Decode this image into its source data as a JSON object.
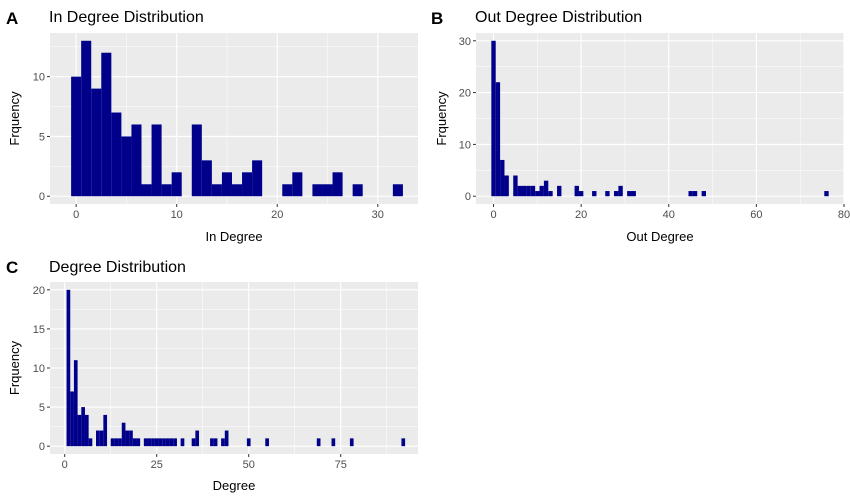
{
  "chart_data": [
    {
      "type": "bar",
      "panel": "A",
      "title": "In Degree Distribution",
      "xlabel": "In Degree",
      "ylabel": "Frquency",
      "xlim": [
        -2.6,
        34.0
      ],
      "ylim": [
        -0.65,
        13.65
      ],
      "xticks": [
        0,
        10,
        20,
        30
      ],
      "yticks": [
        0,
        5,
        10
      ],
      "binwidth": 1,
      "bar_color": "#00008B",
      "grid": true,
      "bins": [
        {
          "x": 0,
          "y": 10
        },
        {
          "x": 1,
          "y": 13
        },
        {
          "x": 2,
          "y": 9
        },
        {
          "x": 3,
          "y": 12
        },
        {
          "x": 4,
          "y": 7
        },
        {
          "x": 5,
          "y": 5
        },
        {
          "x": 6,
          "y": 6
        },
        {
          "x": 7,
          "y": 1
        },
        {
          "x": 8,
          "y": 6
        },
        {
          "x": 9,
          "y": 1
        },
        {
          "x": 10,
          "y": 2
        },
        {
          "x": 12,
          "y": 6
        },
        {
          "x": 13,
          "y": 3
        },
        {
          "x": 14,
          "y": 1
        },
        {
          "x": 15,
          "y": 2
        },
        {
          "x": 16,
          "y": 1
        },
        {
          "x": 17,
          "y": 2
        },
        {
          "x": 18,
          "y": 3
        },
        {
          "x": 21,
          "y": 1
        },
        {
          "x": 22,
          "y": 2
        },
        {
          "x": 24,
          "y": 1
        },
        {
          "x": 25,
          "y": 1
        },
        {
          "x": 26,
          "y": 2
        },
        {
          "x": 28,
          "y": 1
        },
        {
          "x": 32,
          "y": 1
        }
      ]
    },
    {
      "type": "bar",
      "panel": "B",
      "title": "Out Degree Distribution",
      "xlabel": "Out Degree",
      "ylabel": "Frquency",
      "xlim": [
        -4.0,
        80.0
      ],
      "ylim": [
        -1.5,
        31.5
      ],
      "xticks": [
        0,
        20,
        40,
        60,
        80
      ],
      "yticks": [
        0,
        10,
        20,
        30
      ],
      "binwidth": 1,
      "bar_color": "#00008B",
      "grid": true,
      "bins": [
        {
          "x": 0,
          "y": 30
        },
        {
          "x": 1,
          "y": 22
        },
        {
          "x": 2,
          "y": 7
        },
        {
          "x": 3,
          "y": 4
        },
        {
          "x": 5,
          "y": 4
        },
        {
          "x": 6,
          "y": 2
        },
        {
          "x": 7,
          "y": 2
        },
        {
          "x": 8,
          "y": 2
        },
        {
          "x": 9,
          "y": 2
        },
        {
          "x": 10,
          "y": 1
        },
        {
          "x": 11,
          "y": 2
        },
        {
          "x": 12,
          "y": 3
        },
        {
          "x": 13,
          "y": 1
        },
        {
          "x": 15,
          "y": 2
        },
        {
          "x": 19,
          "y": 2
        },
        {
          "x": 20,
          "y": 1
        },
        {
          "x": 23,
          "y": 1
        },
        {
          "x": 26,
          "y": 1
        },
        {
          "x": 28,
          "y": 1
        },
        {
          "x": 29,
          "y": 2
        },
        {
          "x": 31,
          "y": 1
        },
        {
          "x": 32,
          "y": 1
        },
        {
          "x": 45,
          "y": 1
        },
        {
          "x": 46,
          "y": 1
        },
        {
          "x": 48,
          "y": 1
        },
        {
          "x": 76,
          "y": 1
        }
      ]
    },
    {
      "type": "bar",
      "panel": "C",
      "title": "Degree Distribution",
      "xlabel": "Degree",
      "ylabel": "Frquency",
      "xlim": [
        -4.0,
        96.0
      ],
      "ylim": [
        -1.0,
        21.0
      ],
      "xticks": [
        0,
        25,
        50,
        75
      ],
      "yticks": [
        0,
        5,
        10,
        15,
        20
      ],
      "binwidth": 1,
      "bar_color": "#00008B",
      "grid": true,
      "bins": [
        {
          "x": 1,
          "y": 20
        },
        {
          "x": 2,
          "y": 7
        },
        {
          "x": 3,
          "y": 11
        },
        {
          "x": 4,
          "y": 4
        },
        {
          "x": 5,
          "y": 5
        },
        {
          "x": 6,
          "y": 4
        },
        {
          "x": 7,
          "y": 1
        },
        {
          "x": 9,
          "y": 2
        },
        {
          "x": 10,
          "y": 2
        },
        {
          "x": 11,
          "y": 4
        },
        {
          "x": 13,
          "y": 1
        },
        {
          "x": 14,
          "y": 1
        },
        {
          "x": 15,
          "y": 1
        },
        {
          "x": 16,
          "y": 3
        },
        {
          "x": 17,
          "y": 2
        },
        {
          "x": 18,
          "y": 2
        },
        {
          "x": 19,
          "y": 1
        },
        {
          "x": 20,
          "y": 1
        },
        {
          "x": 22,
          "y": 1
        },
        {
          "x": 23,
          "y": 1
        },
        {
          "x": 24,
          "y": 1
        },
        {
          "x": 25,
          "y": 1
        },
        {
          "x": 26,
          "y": 1
        },
        {
          "x": 27,
          "y": 1
        },
        {
          "x": 28,
          "y": 1
        },
        {
          "x": 29,
          "y": 1
        },
        {
          "x": 30,
          "y": 1
        },
        {
          "x": 32,
          "y": 1
        },
        {
          "x": 35,
          "y": 1
        },
        {
          "x": 36,
          "y": 2
        },
        {
          "x": 40,
          "y": 1
        },
        {
          "x": 41,
          "y": 1
        },
        {
          "x": 43,
          "y": 1
        },
        {
          "x": 44,
          "y": 2
        },
        {
          "x": 50,
          "y": 1
        },
        {
          "x": 55,
          "y": 1
        },
        {
          "x": 69,
          "y": 1
        },
        {
          "x": 73,
          "y": 1
        },
        {
          "x": 78,
          "y": 1
        },
        {
          "x": 92,
          "y": 1
        }
      ]
    }
  ]
}
